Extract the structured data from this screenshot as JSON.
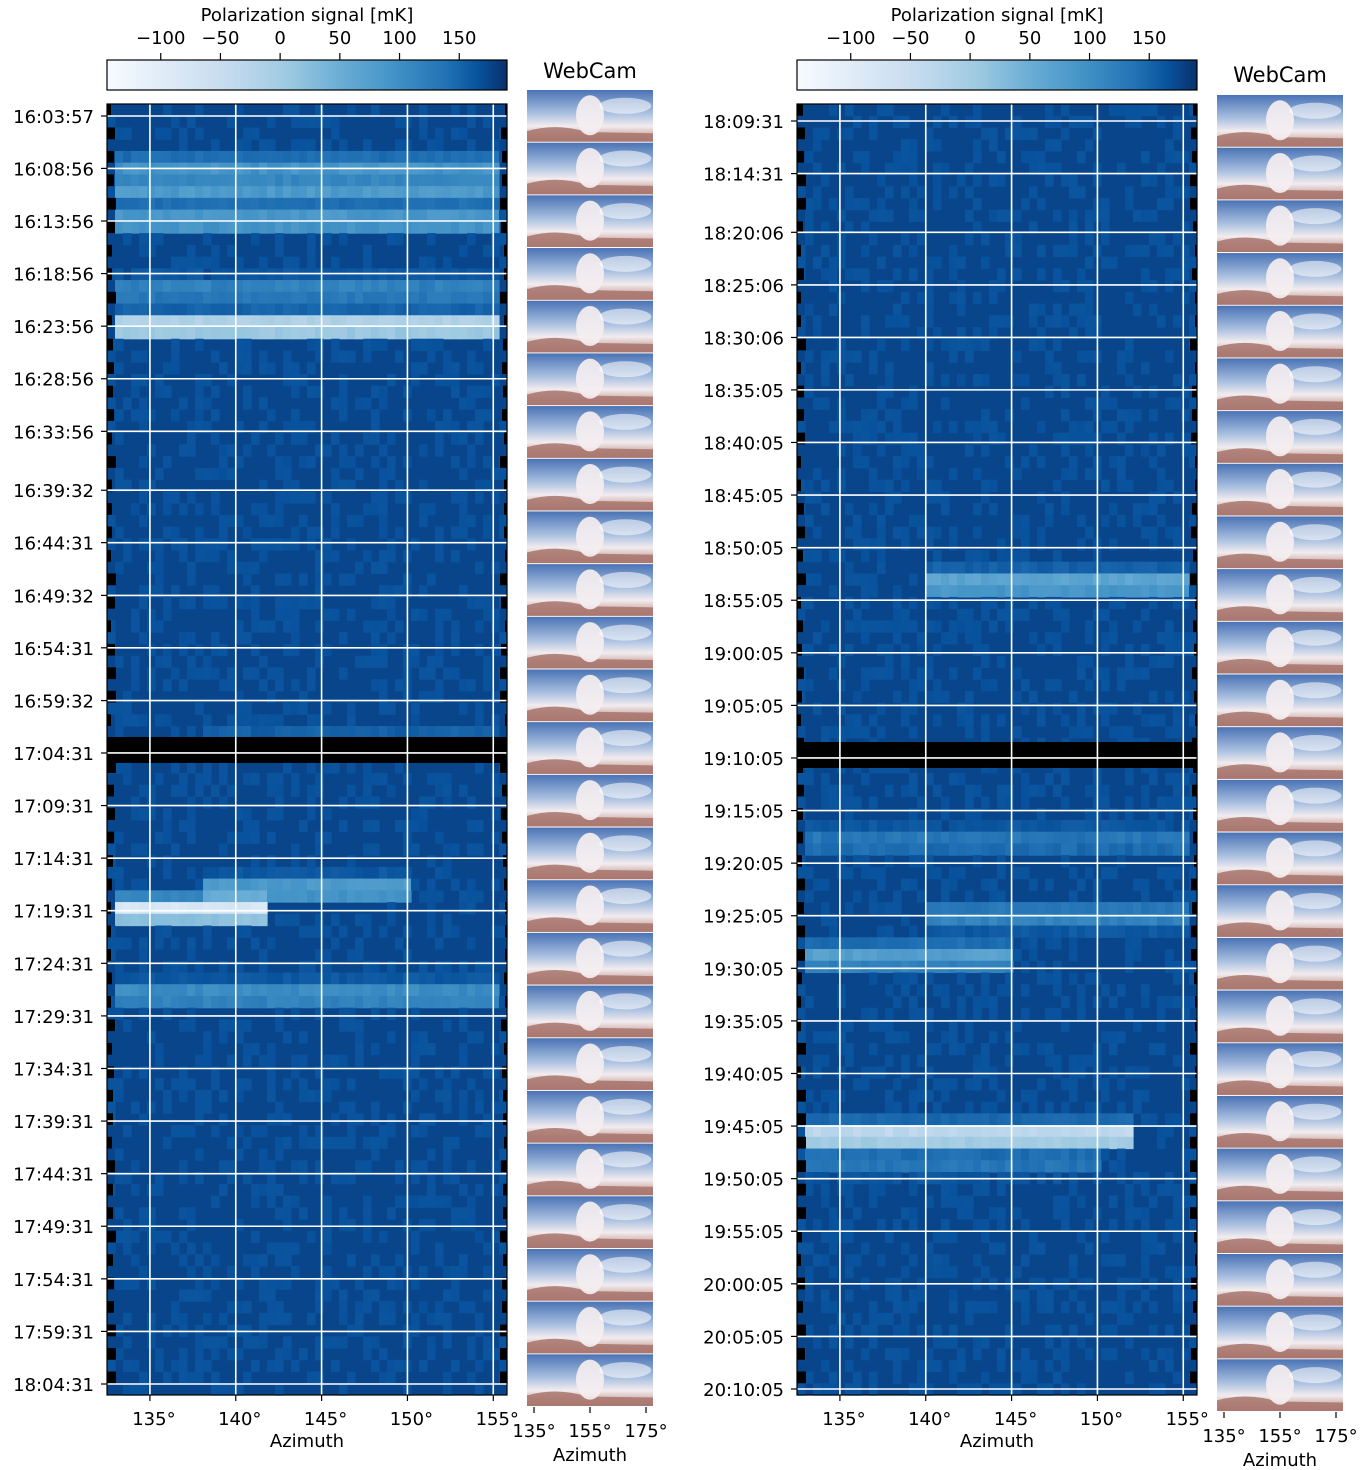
{
  "chart_data": [
    {
      "type": "heatmap",
      "colorbar": {
        "label": "Polarization signal [mK]",
        "ticks": [
          -100,
          -50,
          0,
          50,
          100,
          150
        ],
        "range": [
          -145,
          190
        ],
        "colormap": "Blues",
        "location": "top"
      },
      "xlabel": "Azimuth",
      "xlim": [
        132.5,
        155.8
      ],
      "xticks": [
        135,
        140,
        145,
        150,
        155
      ],
      "xtick_labels": [
        "135°",
        "140°",
        "145°",
        "150°",
        "155°"
      ],
      "grid": true,
      "yticks": [
        "16:03:57",
        "16:08:56",
        "16:13:56",
        "16:18:56",
        "16:23:56",
        "16:28:56",
        "16:33:56",
        "16:39:32",
        "16:44:31",
        "16:49:32",
        "16:54:31",
        "16:59:32",
        "17:04:31",
        "17:09:31",
        "17:14:31",
        "17:19:31",
        "17:24:31",
        "17:29:31",
        "17:34:31",
        "17:39:31",
        "17:44:31",
        "17:49:31",
        "17:54:31",
        "17:59:31",
        "18:04:31"
      ],
      "background_mK": 175,
      "gap_rows_time": [
        "17:04:31"
      ],
      "features": [
        {
          "time": "16:08:56",
          "az_range": [
            133,
            155.5
          ],
          "value_mK": 80
        },
        {
          "time": "16:11:00",
          "az_range": [
            133,
            155.5
          ],
          "value_mK": 60
        },
        {
          "time": "16:13:56",
          "az_range": [
            133,
            155.5
          ],
          "value_mK": 40
        },
        {
          "time": "16:20:30",
          "az_range": [
            133,
            155.5
          ],
          "value_mK": 90
        },
        {
          "time": "16:23:56",
          "az_range": [
            133,
            155.5
          ],
          "value_mK": -100
        },
        {
          "time": "17:03:30",
          "az_range": [
            138,
            155.5
          ],
          "value_mK": 120
        },
        {
          "time": "17:17:30",
          "az_range": [
            138,
            150
          ],
          "value_mK": 40
        },
        {
          "time": "17:19:31",
          "az_range": [
            133,
            142
          ],
          "value_mK": -140
        },
        {
          "time": "17:27:30",
          "az_range": [
            133,
            155.5
          ],
          "value_mK": 70
        }
      ]
    },
    {
      "type": "image_strip",
      "title": "WebCam",
      "xlabel": "Azimuth",
      "xtick_labels": [
        "135°",
        "155°",
        "175°"
      ],
      "frames": 25
    },
    {
      "type": "heatmap",
      "colorbar": {
        "label": "Polarization signal [mK]",
        "ticks": [
          -100,
          -50,
          0,
          50,
          100,
          150
        ],
        "range": [
          -145,
          190
        ],
        "colormap": "Blues",
        "location": "top"
      },
      "xlabel": "Azimuth",
      "xlim": [
        132.5,
        155.8
      ],
      "xticks": [
        135,
        140,
        145,
        150,
        155
      ],
      "xtick_labels": [
        "135°",
        "140°",
        "145°",
        "150°",
        "155°"
      ],
      "grid": true,
      "yticks": [
        "18:09:31",
        "18:14:31",
        "18:20:06",
        "18:25:06",
        "18:30:06",
        "18:35:05",
        "18:40:05",
        "18:45:05",
        "18:50:05",
        "18:55:05",
        "19:00:05",
        "19:05:05",
        "19:10:05",
        "19:15:05",
        "19:20:05",
        "19:25:05",
        "19:30:05",
        "19:35:05",
        "19:40:05",
        "19:45:05",
        "19:50:05",
        "19:55:05",
        "20:00:05",
        "20:05:05",
        "20:10:05"
      ],
      "background_mK": 175,
      "gap_rows_time": [
        "19:10:05"
      ],
      "features": [
        {
          "time": "18:53:30",
          "az_range": [
            140,
            155.5
          ],
          "value_mK": 20
        },
        {
          "time": "19:18:00",
          "az_range": [
            133,
            155.5
          ],
          "value_mK": 110
        },
        {
          "time": "19:25:05",
          "az_range": [
            140,
            155.5
          ],
          "value_mK": 90
        },
        {
          "time": "19:29:00",
          "az_range": [
            133,
            145
          ],
          "value_mK": 50
        },
        {
          "time": "19:46:00",
          "az_range": [
            133,
            152
          ],
          "value_mK": -120
        },
        {
          "time": "19:48:30",
          "az_range": [
            133,
            150
          ],
          "value_mK": 110
        }
      ]
    },
    {
      "type": "image_strip",
      "title": "WebCam",
      "xlabel": "Azimuth",
      "xtick_labels": [
        "135°",
        "155°",
        "175°"
      ],
      "frames": 25
    }
  ]
}
